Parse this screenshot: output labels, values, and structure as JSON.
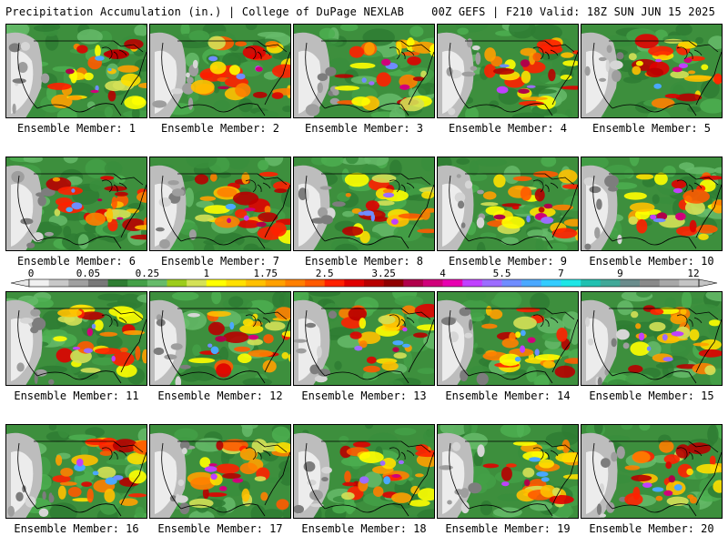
{
  "header": {
    "title_left": "Precipitation Accumulation (in.) | College of DuPage NEXLAB",
    "title_right": "00Z GEFS | F210 Valid: 18Z SUN JUN 15 2025"
  },
  "members": [
    {
      "label": "Ensemble Member: 1"
    },
    {
      "label": "Ensemble Member: 2"
    },
    {
      "label": "Ensemble Member: 3"
    },
    {
      "label": "Ensemble Member: 4"
    },
    {
      "label": "Ensemble Member: 5"
    },
    {
      "label": "Ensemble Member: 6"
    },
    {
      "label": "Ensemble Member: 7"
    },
    {
      "label": "Ensemble Member: 8"
    },
    {
      "label": "Ensemble Member: 9"
    },
    {
      "label": "Ensemble Member: 10"
    },
    {
      "label": "Ensemble Member: 11"
    },
    {
      "label": "Ensemble Member: 12"
    },
    {
      "label": "Ensemble Member: 13"
    },
    {
      "label": "Ensemble Member: 14"
    },
    {
      "label": "Ensemble Member: 15"
    },
    {
      "label": "Ensemble Member: 16"
    },
    {
      "label": "Ensemble Member: 17"
    },
    {
      "label": "Ensemble Member: 18"
    },
    {
      "label": "Ensemble Member: 19"
    },
    {
      "label": "Ensemble Member: 20"
    }
  ],
  "legend": {
    "ticks": [
      "0",
      "0.05",
      "0.25",
      "1",
      "1.75",
      "2.5",
      "3.25",
      "4",
      "5.5",
      "7",
      "9",
      "12"
    ],
    "colors": [
      "#f0f0f0",
      "#c8c8c8",
      "#a0a0a0",
      "#787878",
      "#2e7d32",
      "#43a047",
      "#66bb6a",
      "#9ccc1a",
      "#d4e157",
      "#ffff00",
      "#ffe000",
      "#ffc000",
      "#ffa000",
      "#ff7f00",
      "#ff5a00",
      "#ff2000",
      "#e00000",
      "#b80000",
      "#900000",
      "#b0004a",
      "#d0007a",
      "#e800b0",
      "#c040ff",
      "#9c6cff",
      "#6f8cff",
      "#4aa8ff",
      "#33ccff",
      "#1ee6e6",
      "#20c0b0",
      "#40a898",
      "#6a8c8c",
      "#8a8a8a",
      "#a8a8a8",
      "#c4c4c4"
    ]
  }
}
